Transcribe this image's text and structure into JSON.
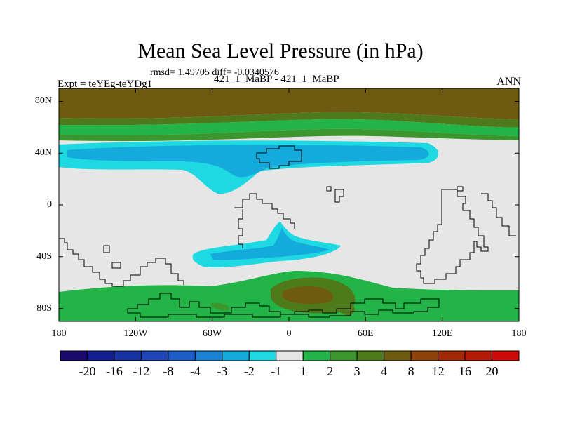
{
  "title": "Mean Sea Level Pressure (in hPa)",
  "stats": "rmsd= 1.49705 diff= -0.0340576",
  "experiment": "Expt = teYEg-teYDg1",
  "subtitle": "421_1_MaBP - 421_1_MaBP",
  "season": "ANN",
  "map": {
    "lon_ticks": [
      {
        "value": -180,
        "label": "180"
      },
      {
        "value": -120,
        "label": "120W"
      },
      {
        "value": -60,
        "label": "60W"
      },
      {
        "value": 0,
        "label": "0"
      },
      {
        "value": 60,
        "label": "60E"
      },
      {
        "value": 120,
        "label": "120E"
      },
      {
        "value": 180,
        "label": "180"
      }
    ],
    "lat_ticks": [
      {
        "value": 80,
        "label": "80N"
      },
      {
        "value": 40,
        "label": "40N"
      },
      {
        "value": 0,
        "label": "0"
      },
      {
        "value": -40,
        "label": "40S"
      },
      {
        "value": -80,
        "label": "80S"
      }
    ],
    "lon_range": [
      -180,
      180
    ],
    "lat_range": [
      -90,
      90
    ]
  },
  "colorbar": {
    "labels": [
      "-20",
      "-16",
      "-12",
      "-8",
      "-4",
      "-3",
      "-2",
      "-1",
      "1",
      "2",
      "3",
      "4",
      "8",
      "12",
      "16",
      "20"
    ],
    "colors": [
      "#1a0a6b",
      "#141e8c",
      "#1832a0",
      "#1e46b4",
      "#1e5cc8",
      "#1e82d2",
      "#14aadc",
      "#1ed8e2",
      "#e6e6e6",
      "#22b446",
      "#3c962e",
      "#4e7a1c",
      "#6e5a10",
      "#8c420a",
      "#a02a08",
      "#b41a08",
      "#cc0a08"
    ]
  }
}
